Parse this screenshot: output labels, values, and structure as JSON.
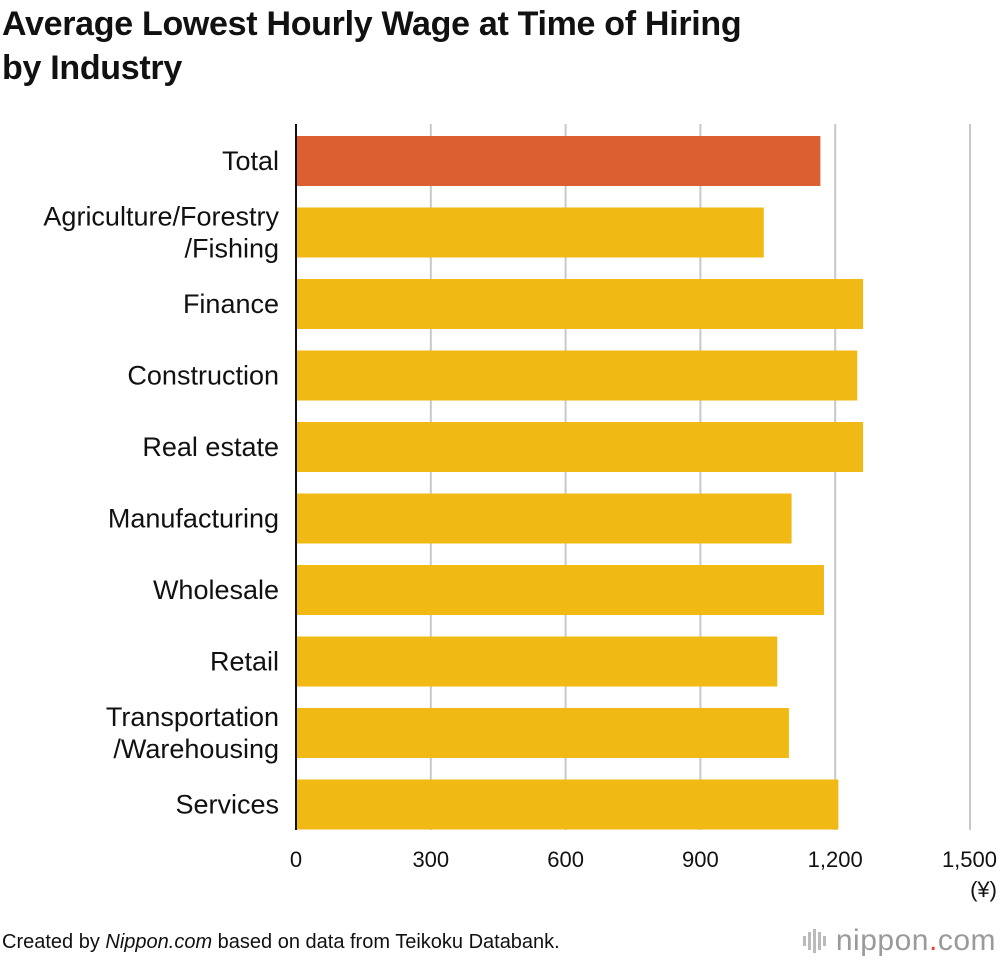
{
  "title_lines": [
    "Average Lowest Hourly Wage at Time of Hiring",
    "by Industry"
  ],
  "footer": {
    "prefix": "Created by ",
    "source_italic": "Nippon.com",
    "suffix": " based on data from Teikoku Databank."
  },
  "logo": {
    "name": "nippon",
    "dot": ".",
    "tld": "com"
  },
  "colors": {
    "highlight": "#db5f30",
    "bar": "#f0b914",
    "grid": "#c8c8c8",
    "axis": "#111111"
  },
  "chart_data": {
    "type": "bar",
    "orientation": "horizontal",
    "categories": [
      [
        "Total"
      ],
      [
        "Agriculture/Forestry",
        "/Fishing"
      ],
      [
        "Finance"
      ],
      [
        "Construction"
      ],
      [
        "Real estate"
      ],
      [
        "Manufacturing"
      ],
      [
        "Wholesale"
      ],
      [
        "Retail"
      ],
      [
        "Transportation",
        "/Warehousing"
      ],
      [
        "Services"
      ]
    ],
    "values": [
      1167,
      1041,
      1262,
      1249,
      1262,
      1103,
      1175,
      1071,
      1097,
      1207
    ],
    "highlight_index": 0,
    "xlim": [
      0,
      1500
    ],
    "xticks": [
      0,
      300,
      600,
      900,
      1200,
      1500
    ],
    "xtick_labels": [
      "0",
      "300",
      "600",
      "900",
      "1,200",
      "1,500"
    ],
    "unit_label": "(¥)",
    "grid": true
  }
}
